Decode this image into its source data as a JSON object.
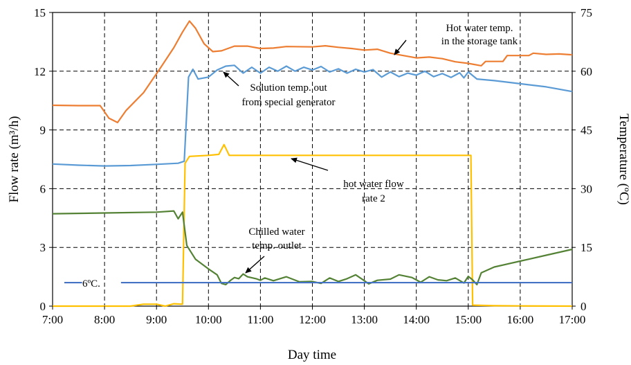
{
  "chart_data": {
    "type": "line",
    "xlabel": "Day time",
    "ylabel_left": "Flow rate (m³/h)",
    "ylabel_right": "Temperature (ºC)",
    "x_range": [
      "7:00",
      "17:00"
    ],
    "x_ticks": [
      "7:00",
      "8:00",
      "9:00",
      "10:00",
      "11:00",
      "12:00",
      "13:00",
      "14:00",
      "15:00",
      "16:00",
      "17:00"
    ],
    "ylim_left": [
      0,
      15
    ],
    "y_ticks_left": [
      "0",
      "3",
      "6",
      "9",
      "12",
      "15"
    ],
    "ylim_right": [
      0,
      75
    ],
    "y_ticks_right": [
      "0",
      "15",
      "30",
      "45",
      "60",
      "75"
    ],
    "grid": true,
    "series": [
      {
        "axis": "right",
        "color": "#ED7D31",
        "points": [
          [
            "7:00",
            51.3
          ],
          [
            "7:30",
            51.2
          ],
          [
            "7:55",
            51.2
          ],
          [
            "8:05",
            48
          ],
          [
            "8:15",
            46.9
          ],
          [
            "8:25",
            50
          ],
          [
            "8:45",
            54.5
          ],
          [
            "9:05",
            61
          ],
          [
            "9:20",
            66
          ],
          [
            "9:30",
            70
          ],
          [
            "9:38",
            72.8
          ],
          [
            "9:45",
            71
          ],
          [
            "9:55",
            67
          ],
          [
            "10:05",
            65
          ],
          [
            "10:15",
            65.2
          ],
          [
            "10:30",
            66.4
          ],
          [
            "10:45",
            66.4
          ],
          [
            "11:00",
            65.8
          ],
          [
            "11:15",
            65.9
          ],
          [
            "11:30",
            66.3
          ],
          [
            "12:00",
            66.2
          ],
          [
            "12:15",
            66.5
          ],
          [
            "12:30",
            66.1
          ],
          [
            "12:45",
            65.8
          ],
          [
            "13:00",
            65.4
          ],
          [
            "13:15",
            65.6
          ],
          [
            "13:30",
            64.6
          ],
          [
            "13:45",
            64
          ],
          [
            "14:00",
            63.4
          ],
          [
            "14:15",
            63.6
          ],
          [
            "14:30",
            63.2
          ],
          [
            "14:45",
            62.4
          ],
          [
            "15:00",
            62
          ],
          [
            "15:15",
            61.4
          ],
          [
            "15:20",
            62.5
          ],
          [
            "15:40",
            62.5
          ],
          [
            "15:45",
            64
          ],
          [
            "16:10",
            64
          ],
          [
            "16:15",
            64.6
          ],
          [
            "16:30",
            64.3
          ],
          [
            "16:45",
            64.4
          ],
          [
            "17:00",
            64.2
          ]
        ]
      },
      {
        "axis": "right",
        "color": "#5B9BD5",
        "points": [
          [
            "7:00",
            36.3
          ],
          [
            "7:30",
            36
          ],
          [
            "8:00",
            35.8
          ],
          [
            "8:30",
            35.9
          ],
          [
            "9:00",
            36.2
          ],
          [
            "9:25",
            36.5
          ],
          [
            "9:32",
            37
          ],
          [
            "9:37",
            58.5
          ],
          [
            "9:42",
            60.5
          ],
          [
            "9:48",
            58
          ],
          [
            "10:00",
            58.5
          ],
          [
            "10:10",
            60.3
          ],
          [
            "10:20",
            61.3
          ],
          [
            "10:30",
            61.5
          ],
          [
            "10:40",
            59.5
          ],
          [
            "10:50",
            61
          ],
          [
            "11:00",
            59.5
          ],
          [
            "11:10",
            61
          ],
          [
            "11:20",
            60
          ],
          [
            "11:30",
            61.3
          ],
          [
            "11:40",
            60
          ],
          [
            "11:50",
            61
          ],
          [
            "12:00",
            60.3
          ],
          [
            "12:10",
            61.2
          ],
          [
            "12:20",
            59.8
          ],
          [
            "12:30",
            60.6
          ],
          [
            "12:40",
            59.5
          ],
          [
            "12:50",
            60.5
          ],
          [
            "13:00",
            59.8
          ],
          [
            "13:10",
            60.4
          ],
          [
            "13:20",
            58.5
          ],
          [
            "13:30",
            59.8
          ],
          [
            "13:40",
            58.6
          ],
          [
            "13:50",
            59.5
          ],
          [
            "14:00",
            59
          ],
          [
            "14:10",
            60
          ],
          [
            "14:20",
            58.6
          ],
          [
            "14:30",
            59.4
          ],
          [
            "14:40",
            58.4
          ],
          [
            "14:50",
            59.6
          ],
          [
            "14:55",
            58.3
          ],
          [
            "15:00",
            59.8
          ],
          [
            "15:10",
            58
          ],
          [
            "15:30",
            57.6
          ],
          [
            "16:00",
            56.8
          ],
          [
            "16:30",
            56
          ],
          [
            "17:00",
            54.8
          ]
        ]
      },
      {
        "axis": "left",
        "color": "#FFC000",
        "points": [
          [
            "7:00",
            0
          ],
          [
            "8:00",
            0
          ],
          [
            "8:30",
            0
          ],
          [
            "8:45",
            0.1
          ],
          [
            "9:00",
            0.1
          ],
          [
            "9:10",
            0
          ],
          [
            "9:20",
            0.12
          ],
          [
            "9:30",
            0.1
          ],
          [
            "9:33",
            7.3
          ],
          [
            "9:38",
            7.65
          ],
          [
            "10:00",
            7.7
          ],
          [
            "10:12",
            7.75
          ],
          [
            "10:18",
            8.25
          ],
          [
            "10:24",
            7.7
          ],
          [
            "11:00",
            7.7
          ],
          [
            "12:00",
            7.7
          ],
          [
            "13:00",
            7.7
          ],
          [
            "14:00",
            7.7
          ],
          [
            "15:00",
            7.7
          ],
          [
            "15:03",
            7.7
          ],
          [
            "15:05",
            0.05
          ],
          [
            "15:30",
            0.02
          ],
          [
            "16:00",
            0.01
          ],
          [
            "17:00",
            0
          ]
        ]
      },
      {
        "axis": "right",
        "color": "#548235",
        "points": [
          [
            "7:00",
            23.6
          ],
          [
            "8:00",
            23.8
          ],
          [
            "9:00",
            24
          ],
          [
            "9:20",
            24.3
          ],
          [
            "9:25",
            22.3
          ],
          [
            "9:30",
            24
          ],
          [
            "9:35",
            15.5
          ],
          [
            "9:45",
            12
          ],
          [
            "10:00",
            9.5
          ],
          [
            "10:10",
            8
          ],
          [
            "10:15",
            5.8
          ],
          [
            "10:20",
            5.5
          ],
          [
            "10:25",
            6.5
          ],
          [
            "10:30",
            7.3
          ],
          [
            "10:35",
            7
          ],
          [
            "10:40",
            8.2
          ],
          [
            "10:45",
            7.5
          ],
          [
            "10:55",
            7
          ],
          [
            "11:00",
            6.6
          ],
          [
            "11:05",
            7.2
          ],
          [
            "11:15",
            6.5
          ],
          [
            "11:30",
            7.5
          ],
          [
            "11:45",
            6.2
          ],
          [
            "12:00",
            6.3
          ],
          [
            "12:10",
            5.8
          ],
          [
            "12:20",
            7.2
          ],
          [
            "12:30",
            6.3
          ],
          [
            "12:40",
            7
          ],
          [
            "12:50",
            8
          ],
          [
            "13:00",
            6.5
          ],
          [
            "13:05",
            5.7
          ],
          [
            "13:15",
            6.6
          ],
          [
            "13:30",
            6.9
          ],
          [
            "13:40",
            8
          ],
          [
            "13:55",
            7.3
          ],
          [
            "14:05",
            6.1
          ],
          [
            "14:15",
            7.5
          ],
          [
            "14:25",
            6.7
          ],
          [
            "14:35",
            6.5
          ],
          [
            "14:45",
            7.2
          ],
          [
            "14:55",
            5.9
          ],
          [
            "15:00",
            7.6
          ],
          [
            "15:05",
            6.7
          ],
          [
            "15:10",
            5.5
          ],
          [
            "15:15",
            8.5
          ],
          [
            "15:30",
            10
          ],
          [
            "16:00",
            11.5
          ],
          [
            "16:30",
            13
          ],
          [
            "17:00",
            14.5
          ]
        ]
      },
      {
        "axis": "right",
        "color": "#4472C4",
        "points": [
          [
            "7:00",
            6
          ],
          [
            "17:00",
            6
          ]
        ],
        "gap": [
          "7:34",
          "8:19"
        ]
      }
    ],
    "annotations": [
      {
        "lines": [
          "Hot water temp.",
          "in the storage tank"
        ]
      },
      {
        "lines": [
          "Solution temp. out",
          "from special generator"
        ]
      },
      {
        "lines": [
          "hot water flow",
          "rate 2"
        ]
      },
      {
        "lines": [
          "Chilled water",
          "temp. outlet"
        ]
      },
      {
        "lines": [
          "6ºC."
        ]
      }
    ]
  }
}
